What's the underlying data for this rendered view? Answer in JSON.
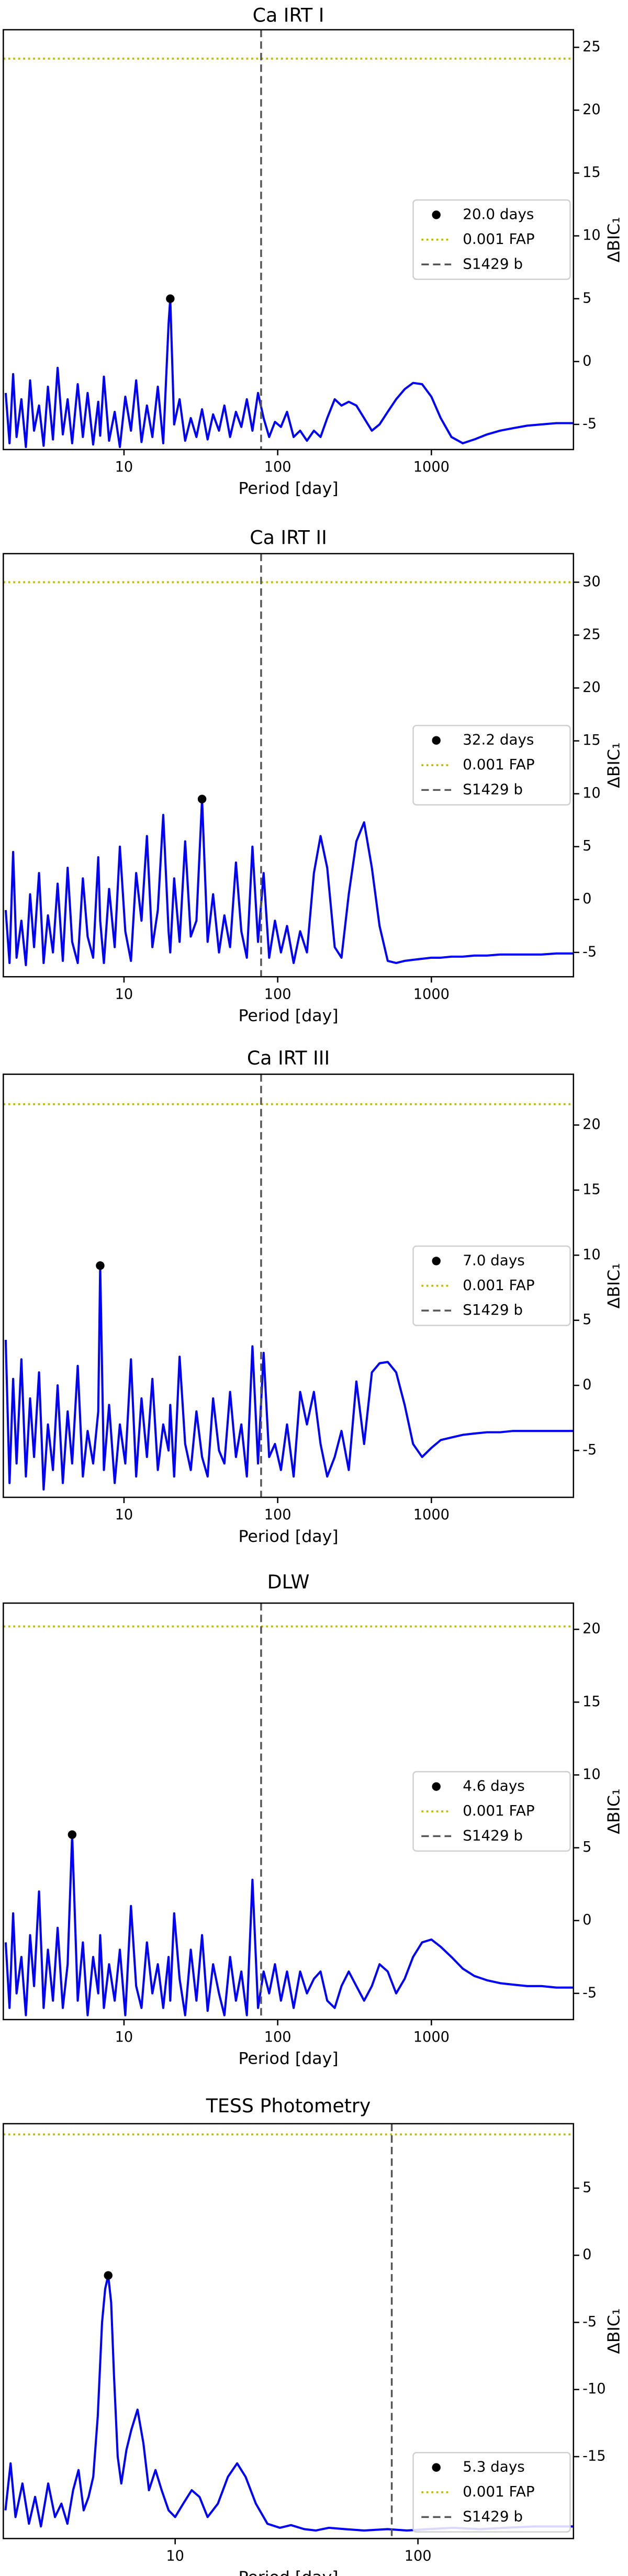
{
  "chart_data": [
    {
      "type": "line",
      "title": "Ca IRT I",
      "x_label": "Period [day]",
      "y_label": "ΔBIC₁",
      "x_scale": "log",
      "legend": "center right",
      "xlim": [
        1.64,
        8400
      ],
      "ylim": [
        -7,
        26.4
      ],
      "xticks": [
        10,
        100,
        1000
      ],
      "yticks": [
        -5,
        0,
        5,
        10,
        15,
        20,
        25
      ],
      "x": [
        1.7,
        1.8,
        1.9,
        2.0,
        2.15,
        2.3,
        2.45,
        2.6,
        2.8,
        3.0,
        3.2,
        3.45,
        3.7,
        4.0,
        4.3,
        4.6,
        5.0,
        5.4,
        5.8,
        6.3,
        6.8,
        7.0,
        7.4,
        8.0,
        8.7,
        9.4,
        10.2,
        11.1,
        12.0,
        13.0,
        14.1,
        15.3,
        16.6,
        18.0,
        19.5,
        20.0,
        21.2,
        23.0,
        25.0,
        27.2,
        29.6,
        32.2,
        35.0,
        38.0,
        41.5,
        45.0,
        49.0,
        53.5,
        58.0,
        63.0,
        68.5,
        74.5,
        81.0,
        88.0,
        96.0,
        105,
        115,
        127,
        140,
        155,
        172,
        190,
        210,
        235,
        260,
        290,
        325,
        365,
        410,
        460,
        520,
        590,
        670,
        760,
        870,
        1000,
        1150,
        1350,
        1600,
        1900,
        2300,
        2800,
        3400,
        4200,
        5200,
        6500,
        8400
      ],
      "series": [
        {
          "color": "#0000ff",
          "values": [
            -2.5,
            -6.5,
            -1.0,
            -6.0,
            -3.0,
            -6.8,
            -1.5,
            -5.5,
            -3.5,
            -6.7,
            -2.0,
            -6.2,
            -0.5,
            -5.8,
            -3.0,
            -6.5,
            -1.8,
            -6.0,
            -2.5,
            -6.6,
            -3.2,
            -5.9,
            -1.2,
            -6.3,
            -4.0,
            -6.8,
            -2.8,
            -5.5,
            -1.5,
            -6.4,
            -3.5,
            -6.0,
            -2.0,
            -6.5,
            3.0,
            5.0,
            -5.0,
            -3.0,
            -6.3,
            -4.5,
            -6.0,
            -3.8,
            -6.2,
            -4.2,
            -5.5,
            -3.5,
            -6.0,
            -4.0,
            -5.2,
            -3.0,
            -5.5,
            -2.5,
            -4.5,
            -6.0,
            -4.8,
            -5.2,
            -4.0,
            -6.0,
            -5.5,
            -6.3,
            -5.5,
            -6.0,
            -4.5,
            -3.0,
            -3.5,
            -3.2,
            -3.5,
            -4.5,
            -5.5,
            -5.0,
            -4.0,
            -3.0,
            -2.2,
            -1.7,
            -1.8,
            -2.8,
            -4.5,
            -6.0,
            -6.5,
            -6.2,
            -5.8,
            -5.5,
            -5.3,
            -5.1,
            -5.0,
            -4.9,
            -4.9
          ]
        }
      ],
      "peak": {
        "name": "20.0 days",
        "x": 20.0,
        "y": 5.0,
        "color": "#000000"
      },
      "fap": {
        "name": "0.001 FAP",
        "value": 24.1,
        "color": "#bfbf00"
      },
      "planet": {
        "name": "S1429 b",
        "period": 78,
        "color": "#555555"
      }
    },
    {
      "type": "line",
      "title": "Ca IRT II",
      "x_label": "Period [day]",
      "y_label": "ΔBIC₁",
      "x_scale": "log",
      "legend": "center right",
      "xlim": [
        1.64,
        8400
      ],
      "ylim": [
        -7.3,
        32.7
      ],
      "xticks": [
        10,
        100,
        1000
      ],
      "yticks": [
        -5,
        0,
        5,
        10,
        15,
        20,
        25,
        30
      ],
      "x": [
        1.7,
        1.8,
        1.9,
        2.0,
        2.15,
        2.3,
        2.45,
        2.6,
        2.8,
        3.0,
        3.2,
        3.45,
        3.7,
        4.0,
        4.3,
        4.6,
        5.0,
        5.4,
        5.8,
        6.3,
        6.8,
        7.0,
        7.4,
        8.0,
        8.7,
        9.4,
        10.2,
        11.1,
        12.0,
        13.0,
        14.1,
        15.3,
        16.6,
        18.0,
        19.5,
        20.0,
        21.2,
        23.0,
        25.0,
        27.2,
        29.6,
        32.2,
        35.0,
        38.0,
        41.5,
        45.0,
        49.0,
        53.5,
        58.0,
        63.0,
        68.5,
        74.5,
        81.0,
        88.0,
        96.0,
        105,
        115,
        127,
        140,
        155,
        172,
        190,
        210,
        235,
        260,
        290,
        325,
        365,
        410,
        460,
        520,
        590,
        670,
        760,
        870,
        1000,
        1150,
        1350,
        1600,
        1900,
        2300,
        2800,
        3400,
        4200,
        5200,
        6500,
        8400
      ],
      "series": [
        {
          "color": "#0000ff",
          "values": [
            -1.0,
            -6.0,
            4.5,
            -5.5,
            -2.0,
            -6.2,
            0.5,
            -4.5,
            2.5,
            -6.0,
            -1.5,
            -5.0,
            1.5,
            -5.8,
            3.0,
            -4.0,
            -6.0,
            2.0,
            -3.5,
            -5.5,
            4.0,
            -2.0,
            -6.0,
            1.0,
            -4.5,
            5.0,
            -3.0,
            -5.8,
            2.5,
            -2.0,
            6.0,
            -4.5,
            -1.0,
            8.0,
            -3.0,
            -5.0,
            2.0,
            -4.0,
            5.5,
            -3.5,
            -2.0,
            9.5,
            -4.0,
            0.5,
            -5.0,
            -1.5,
            -4.5,
            3.5,
            -3.0,
            -5.5,
            5.0,
            -4.0,
            2.5,
            -5.5,
            -2.0,
            -5.0,
            -2.5,
            -6.0,
            -3.0,
            -5.0,
            2.5,
            6.0,
            3.0,
            -4.5,
            -5.5,
            0.5,
            5.5,
            7.3,
            3.0,
            -2.5,
            -5.8,
            -6.0,
            -5.8,
            -5.7,
            -5.6,
            -5.5,
            -5.5,
            -5.4,
            -5.4,
            -5.3,
            -5.3,
            -5.2,
            -5.2,
            -5.2,
            -5.2,
            -5.1,
            -5.1
          ]
        }
      ],
      "peak": {
        "name": "32.2 days",
        "x": 32.2,
        "y": 9.5,
        "color": "#000000"
      },
      "fap": {
        "name": "0.001 FAP",
        "value": 30,
        "color": "#bfbf00"
      },
      "planet": {
        "name": "S1429 b",
        "period": 78,
        "color": "#555555"
      }
    },
    {
      "type": "line",
      "title": "Ca IRT III",
      "x_label": "Period [day]",
      "y_label": "ΔBIC₁",
      "x_scale": "log",
      "legend": "center right",
      "xlim": [
        1.64,
        8400
      ],
      "ylim": [
        -8.6,
        23.9
      ],
      "xticks": [
        10,
        100,
        1000
      ],
      "yticks": [
        -5,
        0,
        5,
        10,
        15,
        20
      ],
      "x": [
        1.7,
        1.8,
        1.9,
        2.0,
        2.15,
        2.3,
        2.45,
        2.6,
        2.8,
        3.0,
        3.2,
        3.45,
        3.7,
        4.0,
        4.3,
        4.6,
        5.0,
        5.4,
        5.8,
        6.3,
        6.8,
        7.0,
        7.4,
        8.0,
        8.7,
        9.4,
        10.2,
        11.1,
        12.0,
        13.0,
        14.1,
        15.3,
        16.6,
        18.0,
        19.5,
        20.0,
        21.2,
        23.0,
        25.0,
        27.2,
        29.6,
        32.2,
        35.0,
        38.0,
        41.5,
        45.0,
        49.0,
        53.5,
        58.0,
        63.0,
        68.5,
        74.5,
        81.0,
        88.0,
        96.0,
        105,
        115,
        127,
        140,
        155,
        172,
        190,
        210,
        235,
        260,
        290,
        325,
        365,
        410,
        460,
        520,
        590,
        670,
        760,
        870,
        1000,
        1150,
        1350,
        1600,
        1900,
        2300,
        2800,
        3400,
        4200,
        5200,
        6500,
        8400
      ],
      "series": [
        {
          "color": "#0000ff",
          "values": [
            3.5,
            -7.5,
            0.5,
            -6.0,
            2.0,
            -7.0,
            -1.0,
            -5.5,
            1.0,
            -8.0,
            -3.0,
            -6.5,
            0.0,
            -7.5,
            -2.0,
            -6.0,
            1.5,
            -7.0,
            -3.5,
            -6.0,
            -2.0,
            9.2,
            -6.5,
            -1.5,
            -7.5,
            -3.0,
            -6.0,
            2.0,
            -7.0,
            -1.0,
            -5.5,
            0.5,
            -6.5,
            -3.0,
            -5.0,
            -1.5,
            -7.0,
            2.2,
            -4.5,
            -6.5,
            -2.0,
            -5.5,
            -7.0,
            -1.0,
            -5.0,
            -6.0,
            -0.5,
            -5.5,
            -3.0,
            -7.0,
            3.0,
            -6.0,
            2.5,
            -5.5,
            -4.5,
            -6.5,
            -3.0,
            -7.0,
            -0.5,
            -3.0,
            -0.5,
            -4.5,
            -7.0,
            -5.5,
            -3.5,
            -6.5,
            0.3,
            -4.5,
            1.0,
            1.7,
            1.8,
            1.0,
            -1.5,
            -4.5,
            -5.5,
            -4.8,
            -4.2,
            -4.0,
            -3.8,
            -3.7,
            -3.6,
            -3.6,
            -3.5,
            -3.5,
            -3.5,
            -3.5,
            -3.5
          ]
        }
      ],
      "peak": {
        "name": "7.0 days",
        "x": 7.0,
        "y": 9.2,
        "color": "#000000"
      },
      "fap": {
        "name": "0.001 FAP",
        "value": 21.6,
        "color": "#bfbf00"
      },
      "planet": {
        "name": "S1429 b",
        "period": 78,
        "color": "#555555"
      }
    },
    {
      "type": "line",
      "title": "DLW",
      "x_label": "Period [day]",
      "y_label": "ΔBIC₁",
      "x_scale": "log",
      "legend": "center right",
      "xlim": [
        1.64,
        8400
      ],
      "ylim": [
        -6.8,
        21.8
      ],
      "xticks": [
        10,
        100,
        1000
      ],
      "yticks": [
        -5,
        0,
        5,
        10,
        15,
        20
      ],
      "x": [
        1.7,
        1.8,
        1.9,
        2.0,
        2.15,
        2.3,
        2.45,
        2.6,
        2.8,
        3.0,
        3.2,
        3.45,
        3.7,
        4.0,
        4.3,
        4.6,
        5.0,
        5.4,
        5.8,
        6.3,
        6.8,
        7.0,
        7.4,
        8.0,
        8.7,
        9.4,
        10.2,
        11.1,
        12.0,
        13.0,
        14.1,
        15.3,
        16.6,
        18.0,
        19.5,
        20.0,
        21.2,
        23.0,
        25.0,
        27.2,
        29.6,
        32.2,
        35.0,
        38.0,
        41.5,
        45.0,
        49.0,
        53.5,
        58.0,
        63.0,
        68.5,
        74.5,
        81.0,
        88.0,
        96.0,
        105,
        115,
        127,
        140,
        155,
        172,
        190,
        210,
        235,
        260,
        290,
        325,
        365,
        410,
        460,
        520,
        590,
        670,
        760,
        870,
        1000,
        1150,
        1350,
        1600,
        1900,
        2300,
        2800,
        3400,
        4200,
        5200,
        6500,
        8400
      ],
      "series": [
        {
          "color": "#0000ff",
          "values": [
            -1.5,
            -6.0,
            0.5,
            -5.0,
            -2.5,
            -6.5,
            -1.0,
            -4.5,
            2.0,
            -6.0,
            -2.0,
            -5.5,
            -0.5,
            -6.0,
            -3.0,
            5.9,
            -5.5,
            -1.5,
            -6.5,
            -2.5,
            -5.0,
            -1.0,
            -6.0,
            -3.0,
            -5.5,
            -2.0,
            -6.5,
            1.0,
            -4.5,
            -6.0,
            -1.5,
            -5.0,
            -3.0,
            -6.0,
            -2.5,
            -5.5,
            0.5,
            -4.0,
            -6.5,
            -2.0,
            -5.5,
            -1.0,
            -6.2,
            -3.0,
            -5.0,
            -6.5,
            -2.5,
            -5.5,
            -3.5,
            -6.5,
            2.8,
            -6.0,
            -3.5,
            -5.0,
            -3.0,
            -5.5,
            -3.5,
            -6.0,
            -3.5,
            -5.0,
            -4.0,
            -3.5,
            -5.5,
            -6.0,
            -4.5,
            -3.5,
            -4.5,
            -5.5,
            -4.5,
            -3.0,
            -3.5,
            -5.0,
            -4.0,
            -2.5,
            -1.5,
            -1.3,
            -1.8,
            -2.5,
            -3.3,
            -3.8,
            -4.1,
            -4.3,
            -4.4,
            -4.5,
            -4.5,
            -4.6,
            -4.6
          ]
        }
      ],
      "peak": {
        "name": "4.6 days",
        "x": 4.6,
        "y": 5.9,
        "color": "#000000"
      },
      "fap": {
        "name": "0.001 FAP",
        "value": 20.2,
        "color": "#bfbf00"
      },
      "planet": {
        "name": "S1429 b",
        "period": 78,
        "color": "#555555"
      }
    },
    {
      "type": "line",
      "title": "TESS Photometry",
      "x_label": "Period [day]",
      "y_label": "ΔBIC₁",
      "x_scale": "log",
      "legend": "lower right",
      "xlim": [
        1.96,
        437
      ],
      "ylim": [
        -21.1,
        9.8
      ],
      "xticks": [
        10,
        100
      ],
      "yticks": [
        -15,
        -10,
        -5,
        0,
        5
      ],
      "x": [
        2.0,
        2.1,
        2.2,
        2.35,
        2.5,
        2.65,
        2.8,
        3.0,
        3.2,
        3.4,
        3.6,
        3.8,
        4.0,
        4.2,
        4.4,
        4.6,
        4.8,
        5.0,
        5.15,
        5.3,
        5.45,
        5.6,
        5.8,
        6.0,
        6.3,
        6.6,
        7.0,
        7.4,
        7.8,
        8.3,
        8.8,
        9.4,
        10.0,
        10.8,
        11.7,
        12.6,
        13.6,
        15.0,
        16.5,
        18.0,
        19.5,
        21.5,
        24,
        27,
        30,
        34,
        38,
        43,
        50,
        60,
        75,
        90,
        110,
        140,
        180,
        230,
        300,
        380,
        437
      ],
      "series": [
        {
          "color": "#0000ff",
          "values": [
            -19.0,
            -15.5,
            -19.5,
            -17.0,
            -20.0,
            -18.0,
            -20.2,
            -17.0,
            -19.5,
            -18.5,
            -20.0,
            -17.5,
            -16.0,
            -19.0,
            -18.0,
            -16.5,
            -12.0,
            -5.0,
            -2.5,
            -1.5,
            -3.5,
            -9.0,
            -15.0,
            -17.0,
            -14.5,
            -13.0,
            -11.5,
            -14.0,
            -17.5,
            -16.0,
            -17.5,
            -19.0,
            -19.5,
            -18.5,
            -17.5,
            -18.0,
            -19.5,
            -18.5,
            -16.5,
            -15.5,
            -16.5,
            -18.5,
            -20.0,
            -20.3,
            -20.1,
            -20.4,
            -20.5,
            -20.3,
            -20.4,
            -20.5,
            -20.4,
            -20.5,
            -20.4,
            -20.3,
            -20.4,
            -20.3,
            -20.2,
            -20.2,
            -20.2
          ]
        }
      ],
      "peak": {
        "name": "5.3 days",
        "x": 5.3,
        "y": -1.5,
        "color": "#000000"
      },
      "fap": {
        "name": "0.001 FAP",
        "value": 9.0,
        "color": "#bfbf00"
      },
      "planet": {
        "name": "S1429 b",
        "period": 78,
        "color": "#555555"
      }
    }
  ]
}
